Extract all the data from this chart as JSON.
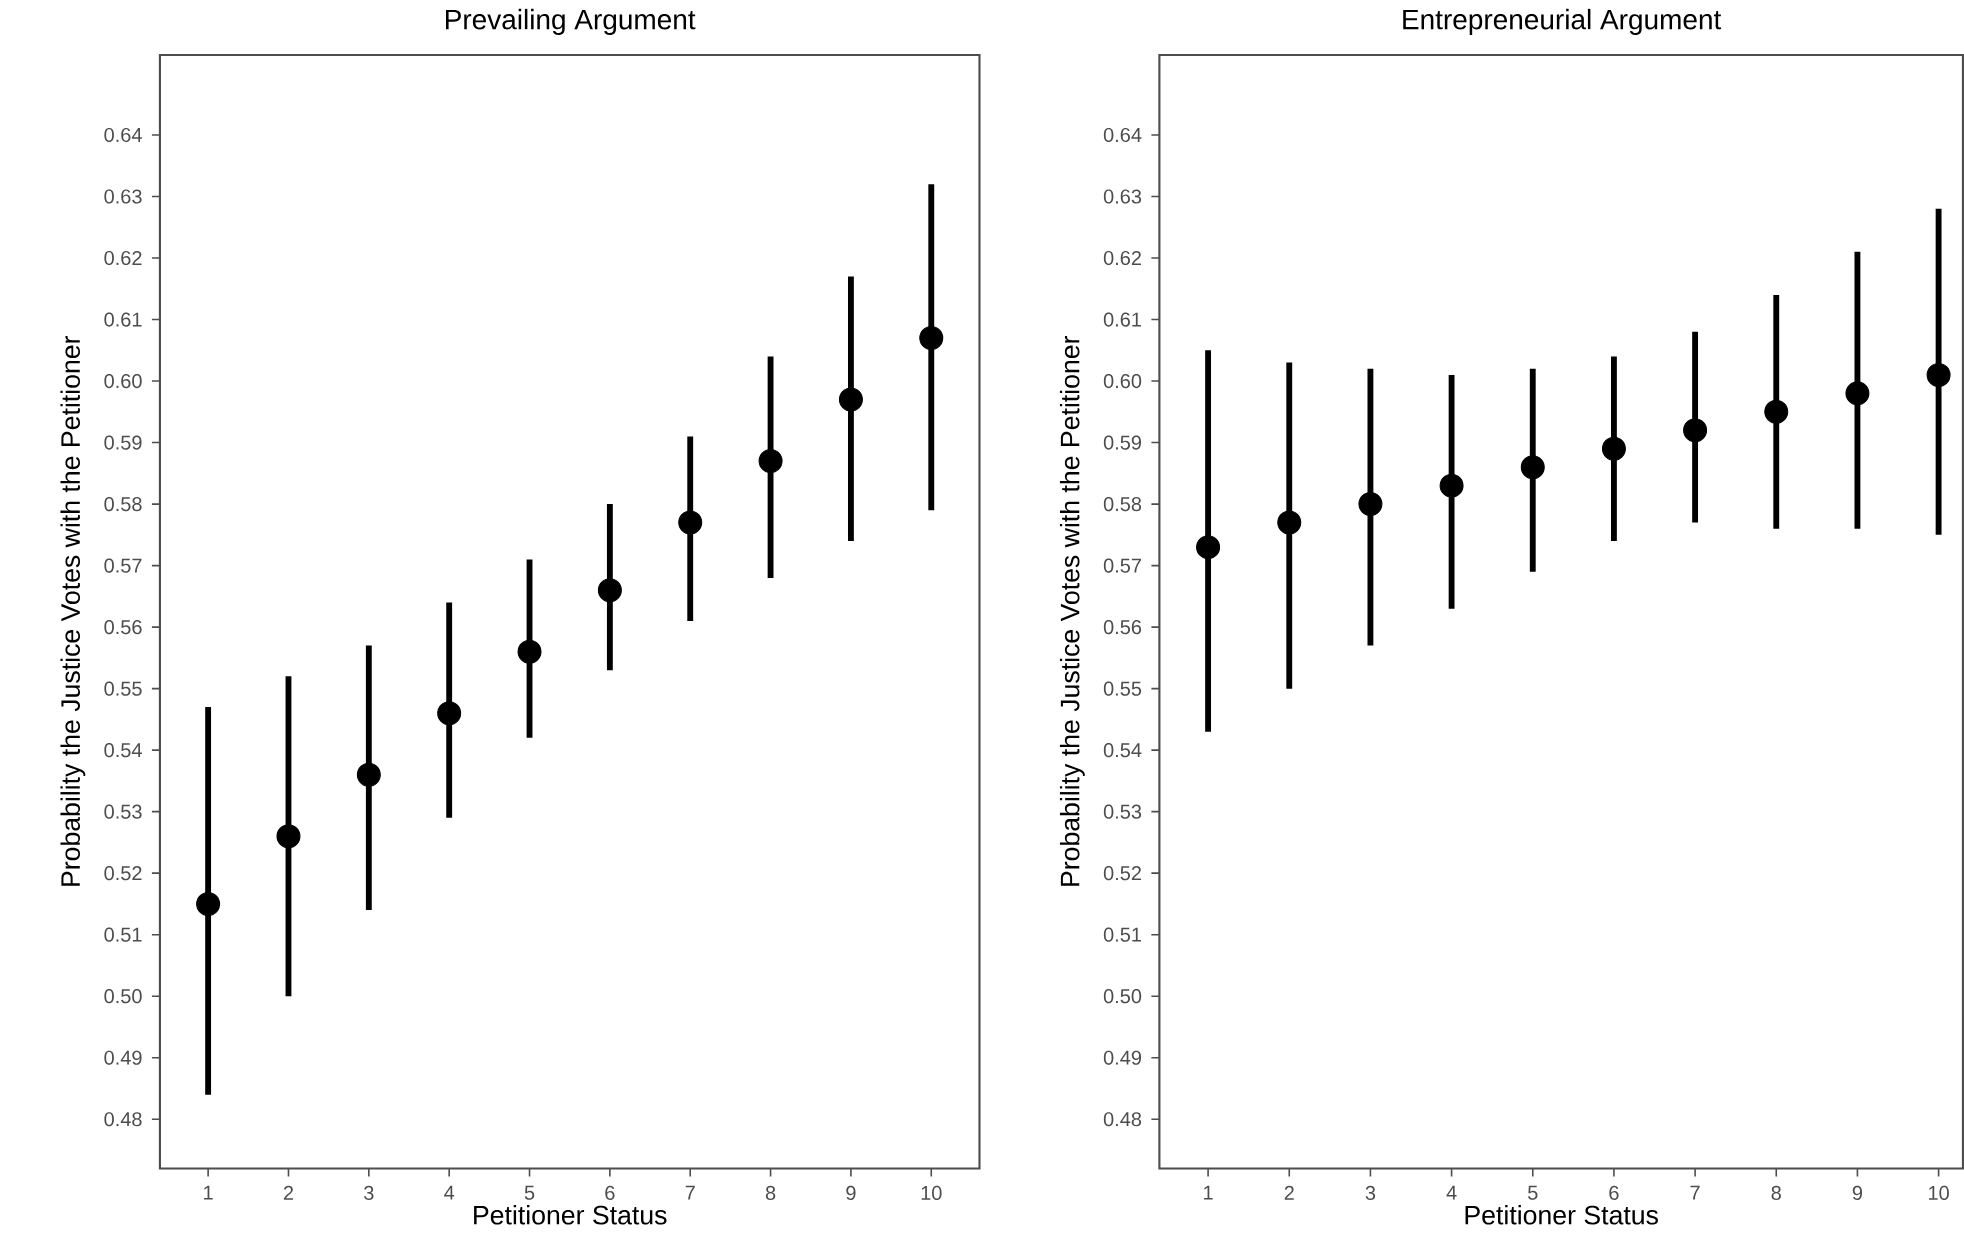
{
  "chart_data": [
    {
      "type": "scatter",
      "title": "Prevailing Argument",
      "xlabel": "Petitioner Status",
      "ylabel": "Probability the Justice Votes with the Petitioner",
      "color": "#000000",
      "grid": false,
      "x": [
        1,
        2,
        3,
        4,
        5,
        6,
        7,
        8,
        9,
        10
      ],
      "values": [
        0.515,
        0.526,
        0.536,
        0.546,
        0.556,
        0.566,
        0.577,
        0.587,
        0.597,
        0.607
      ],
      "errors": [
        [
          0.484,
          0.547
        ],
        [
          0.5,
          0.552
        ],
        [
          0.514,
          0.557
        ],
        [
          0.529,
          0.564
        ],
        [
          0.542,
          0.571
        ],
        [
          0.553,
          0.58
        ],
        [
          0.561,
          0.591
        ],
        [
          0.568,
          0.604
        ],
        [
          0.574,
          0.617
        ],
        [
          0.579,
          0.632
        ]
      ],
      "xlim": [
        0.4,
        10.6
      ],
      "ylim": [
        0.472,
        0.653
      ],
      "xticks": [
        1,
        2,
        3,
        4,
        5,
        6,
        7,
        8,
        9,
        10
      ],
      "yticks": [
        {
          "value": 0.48,
          "label": "0.48"
        },
        {
          "value": 0.49,
          "label": "0.49"
        },
        {
          "value": 0.5,
          "label": "0.50"
        },
        {
          "value": 0.51,
          "label": "0.51"
        },
        {
          "value": 0.52,
          "label": "0.52"
        },
        {
          "value": 0.53,
          "label": "0.53"
        },
        {
          "value": 0.54,
          "label": "0.54"
        },
        {
          "value": 0.55,
          "label": "0.55"
        },
        {
          "value": 0.56,
          "label": "0.56"
        },
        {
          "value": 0.57,
          "label": "0.57"
        },
        {
          "value": 0.58,
          "label": "0.58"
        },
        {
          "value": 0.59,
          "label": "0.59"
        },
        {
          "value": 0.6,
          "label": "0.60"
        },
        {
          "value": 0.61,
          "label": "0.61"
        },
        {
          "value": 0.62,
          "label": "0.62"
        },
        {
          "value": 0.63,
          "label": "0.63"
        },
        {
          "value": 0.64,
          "label": "0.64"
        }
      ]
    },
    {
      "type": "scatter",
      "title": "Entrepreneurial Argument",
      "xlabel": "Petitioner Status",
      "ylabel": "Probability the Justice Votes with the Petitioner",
      "color": "#000000",
      "grid": false,
      "x": [
        1,
        2,
        3,
        4,
        5,
        6,
        7,
        8,
        9,
        10
      ],
      "values": [
        0.573,
        0.577,
        0.58,
        0.583,
        0.586,
        0.589,
        0.592,
        0.595,
        0.598,
        0.601
      ],
      "errors": [
        [
          0.543,
          0.605
        ],
        [
          0.55,
          0.603
        ],
        [
          0.557,
          0.602
        ],
        [
          0.563,
          0.601
        ],
        [
          0.569,
          0.602
        ],
        [
          0.574,
          0.604
        ],
        [
          0.577,
          0.608
        ],
        [
          0.576,
          0.614
        ],
        [
          0.576,
          0.621
        ],
        [
          0.575,
          0.628
        ]
      ],
      "xlim": [
        0.4,
        10.3
      ],
      "ylim": [
        0.472,
        0.653
      ],
      "xticks": [
        1,
        2,
        3,
        4,
        5,
        6,
        7,
        8,
        9,
        10
      ],
      "yticks": [
        {
          "value": 0.48,
          "label": "0.48"
        },
        {
          "value": 0.49,
          "label": "0.49"
        },
        {
          "value": 0.5,
          "label": "0.50"
        },
        {
          "value": 0.51,
          "label": "0.51"
        },
        {
          "value": 0.52,
          "label": "0.52"
        },
        {
          "value": 0.53,
          "label": "0.53"
        },
        {
          "value": 0.54,
          "label": "0.54"
        },
        {
          "value": 0.55,
          "label": "0.55"
        },
        {
          "value": 0.56,
          "label": "0.56"
        },
        {
          "value": 0.57,
          "label": "0.57"
        },
        {
          "value": 0.58,
          "label": "0.58"
        },
        {
          "value": 0.59,
          "label": "0.59"
        },
        {
          "value": 0.6,
          "label": "0.60"
        },
        {
          "value": 0.61,
          "label": "0.61"
        },
        {
          "value": 0.62,
          "label": "0.62"
        },
        {
          "value": 0.63,
          "label": "0.63"
        },
        {
          "value": 0.64,
          "label": "0.64"
        }
      ]
    }
  ]
}
